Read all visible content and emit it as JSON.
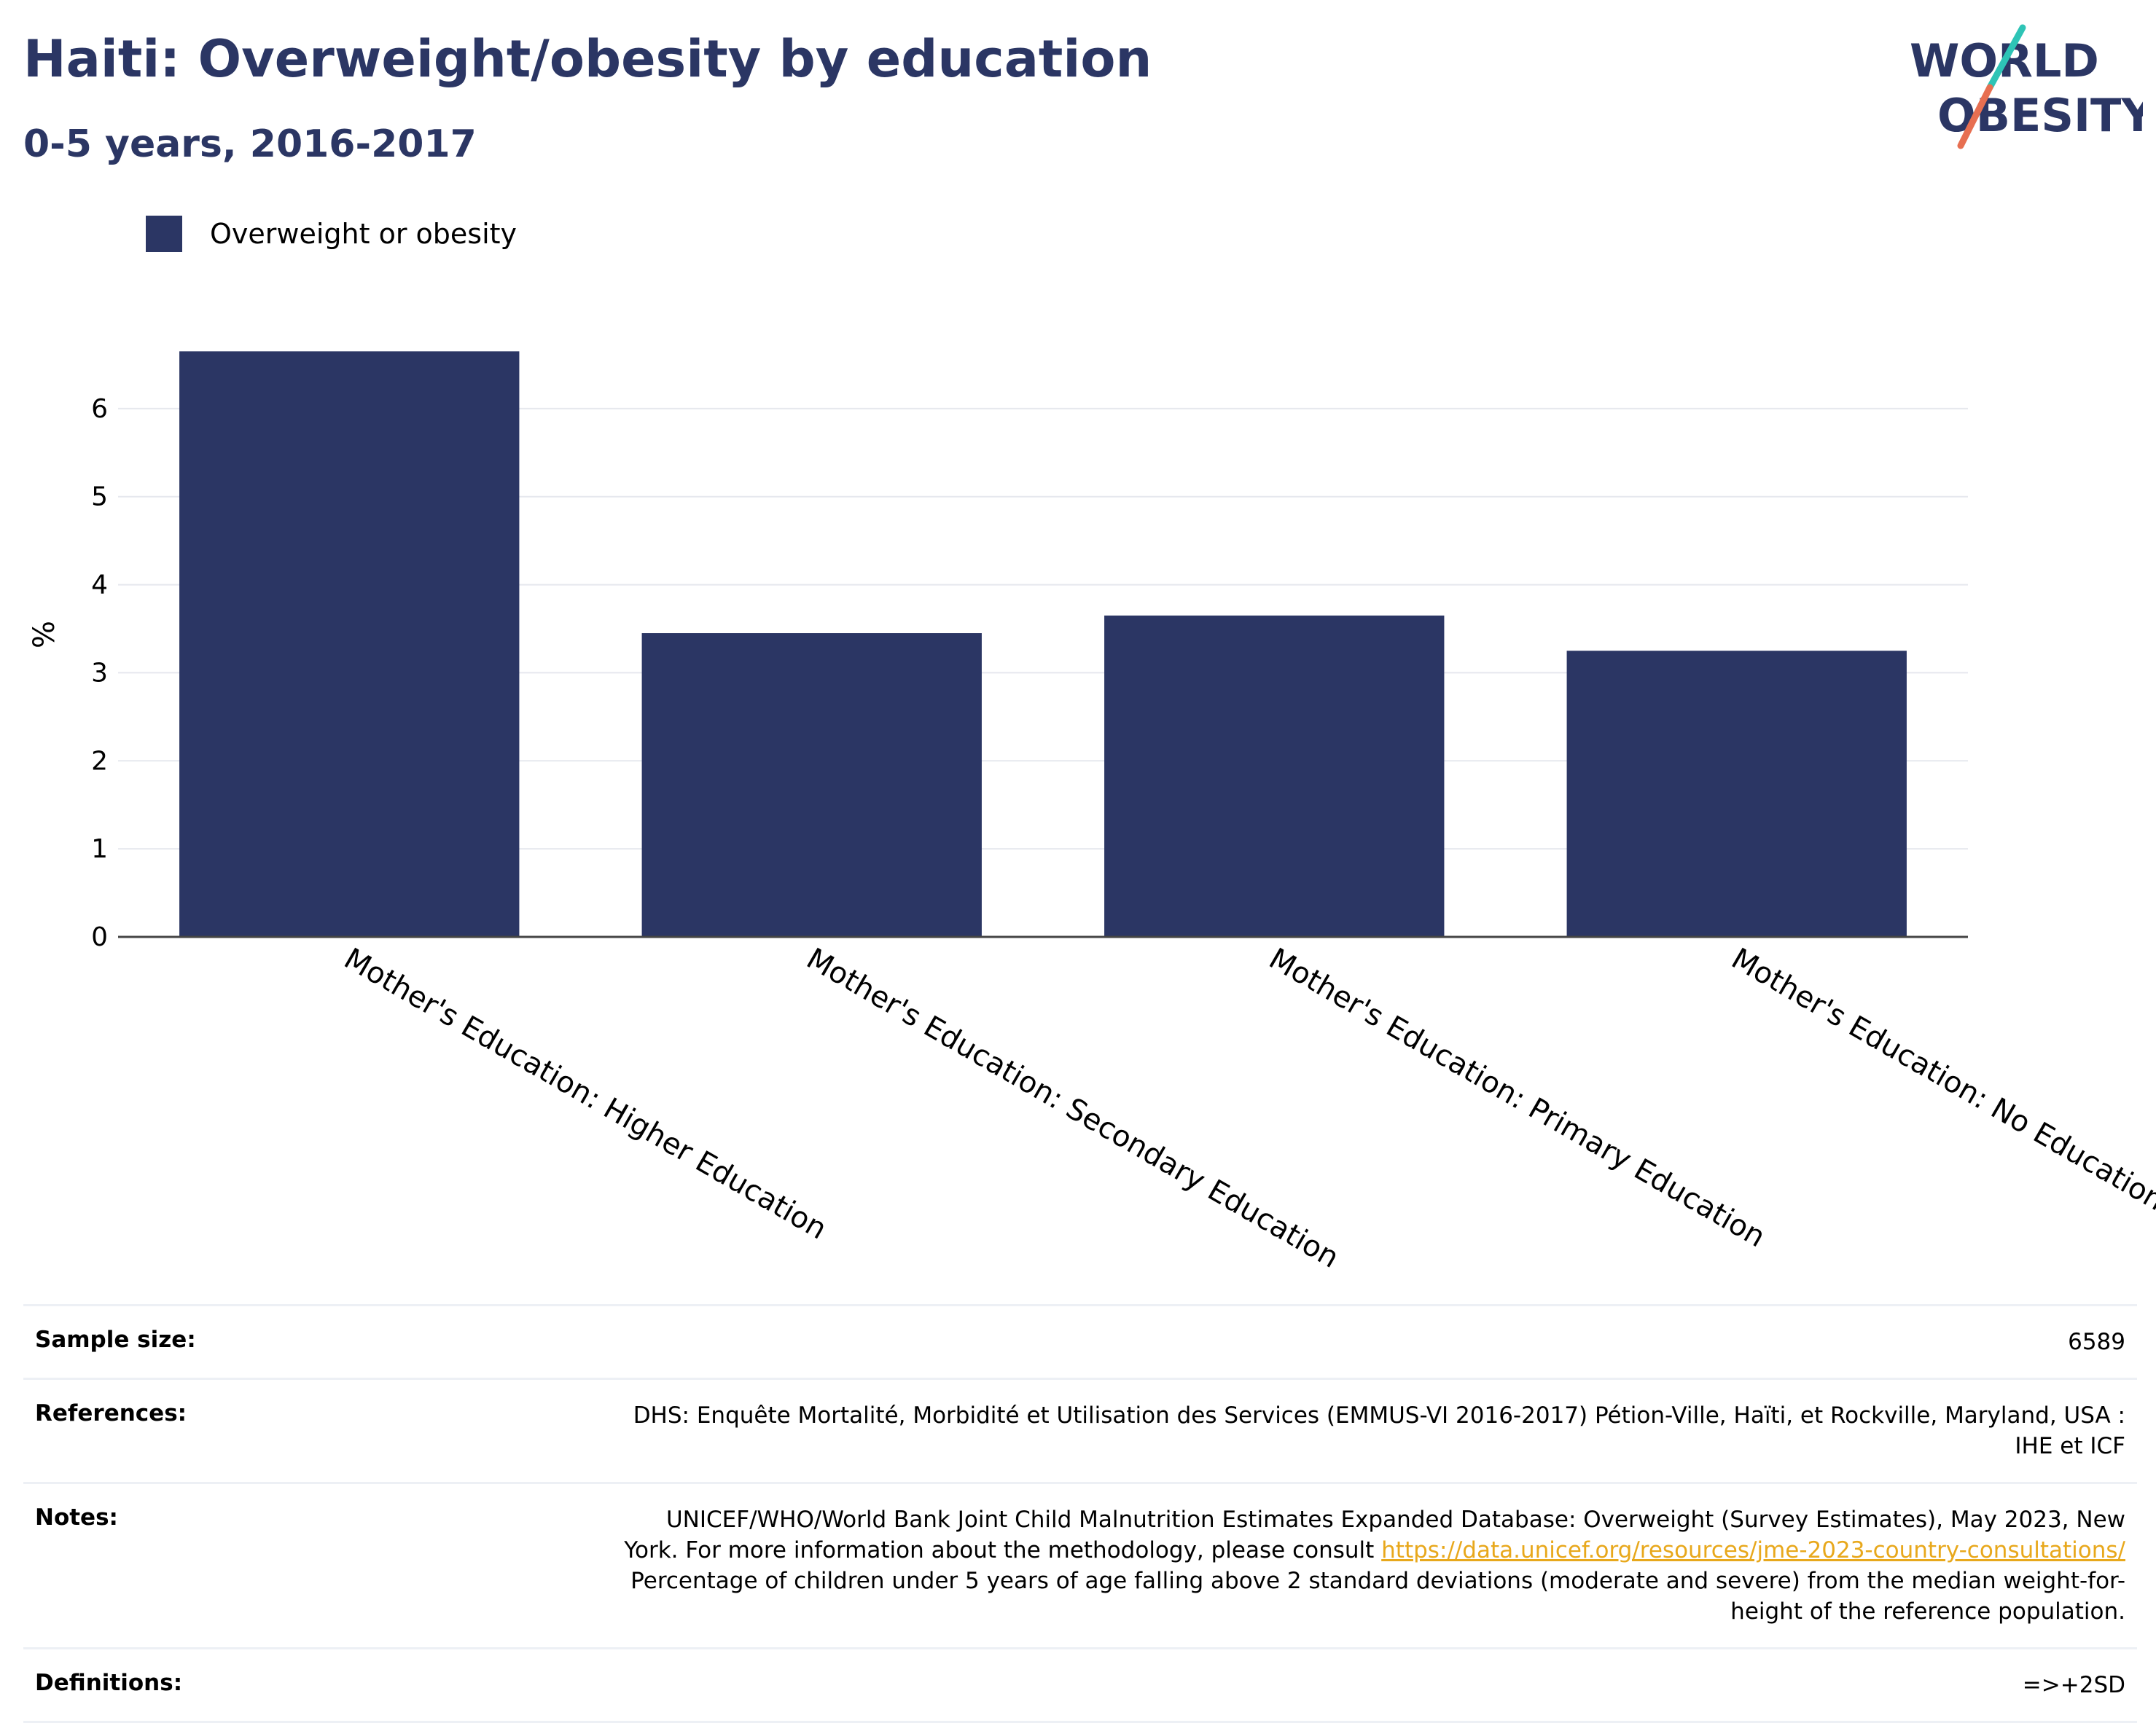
{
  "header": {
    "title": "Haiti: Overweight/obesity by education",
    "subtitle": "0-5 years, 2016-2017"
  },
  "logo": {
    "line1": "WORLD",
    "line2": "OBESITY",
    "text_color": "#2b3664",
    "slash_colors": [
      "#2ec4b6",
      "#e76f51"
    ]
  },
  "chart_data": {
    "type": "bar",
    "categories": [
      "Mother's Education: Higher Education",
      "Mother's Education: Secondary Education",
      "Mother's Education: Primary Education",
      "Mother's Education: No Education"
    ],
    "series": [
      {
        "name": "Overweight or obesity",
        "values": [
          6.65,
          3.45,
          3.65,
          3.25
        ],
        "color": "#2b3664"
      }
    ],
    "ylabel": "%",
    "xlabel": "",
    "yticks": [
      0,
      1,
      2,
      3,
      4,
      5,
      6
    ],
    "ylim": [
      0,
      7
    ],
    "grid": true,
    "legend": "top-left"
  },
  "info_table": {
    "sample_size": {
      "label": "Sample size:",
      "value": "6589"
    },
    "references": {
      "label": "References:",
      "line1": "DHS: Enquête Mortalité, Morbidité et Utilisation des Services (EMMUS-VI 2016-2017) Pétion-Ville, Haïti, et Rockville, Maryland, USA :",
      "line2": "IHE et ICF"
    },
    "notes": {
      "label": "Notes:",
      "line1": "UNICEF/WHO/World Bank Joint Child Malnutrition Estimates Expanded Database: Overweight (Survey Estimates), May 2023, New",
      "line2_prefix": "York. For more information about the methodology, please consult ",
      "link": "https://data.unicef.org/resources/jme-2023-country-consultations/",
      "line3": "Percentage of children under 5 years of age falling above 2 standard deviations (moderate and severe) from the median weight-for-",
      "line4": "height of the reference population."
    },
    "definitions": {
      "label": "Definitions:",
      "value": "=>+2SD"
    }
  }
}
